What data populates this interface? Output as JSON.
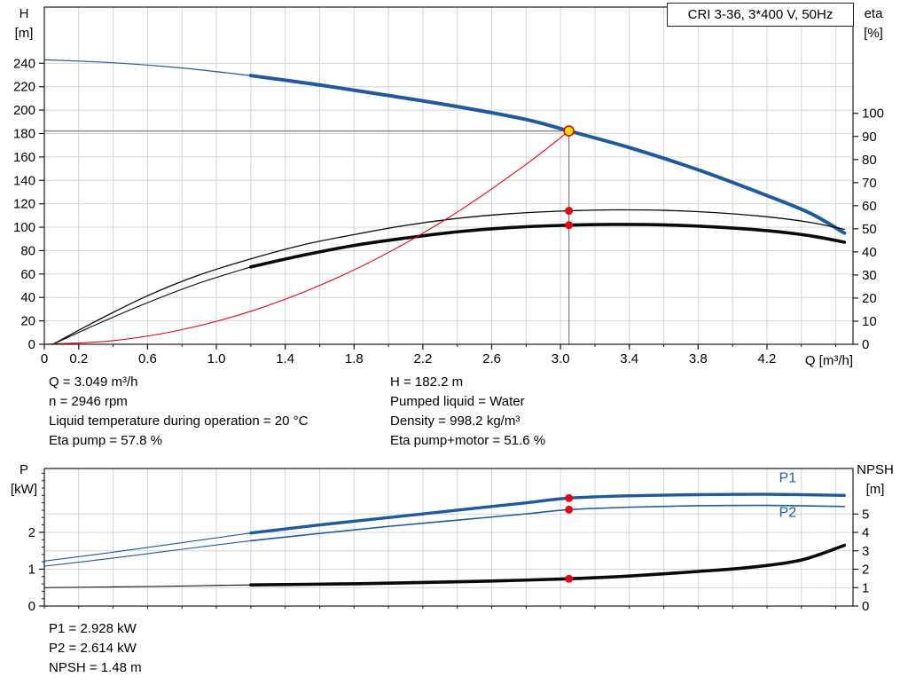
{
  "title_box": "CRI 3-36, 3*400 V, 50Hz",
  "colors": {
    "curve_blue": "#1d5a9e",
    "curve_black": "#0a0a0a",
    "curve_red": "#e30613",
    "marker_red": "#e30613",
    "marker_yellow": "#ffe000",
    "grid": "#d4d4d4",
    "frame": "#1a1a1a",
    "crosshair": "#7a7a7a"
  },
  "operating_point": {
    "left": [
      "Q = 3.049 m³/h",
      "n = 2946 rpm",
      "Liquid temperature during operation = 20 °C",
      "Eta pump = 57.8 %"
    ],
    "right": [
      "H = 182.2 m",
      "Pumped liquid = Water",
      "Density = 998.2 kg/m³",
      "Eta pump+motor = 51.6 %"
    ]
  },
  "power_results": [
    "P1 = 2.928 kW",
    "P2 = 2.614 kW",
    "NPSH = 1.48 m"
  ],
  "chart_data": [
    {
      "type": "line",
      "name": "hq-eta-chart",
      "title": "CRI 3-36, 3*400 V, 50Hz",
      "x": {
        "title": "Q [m³/h]",
        "min": 0,
        "max": 4.7,
        "grid_step": 0.2,
        "minor_step": 0.2,
        "ticks": [
          {
            "v": 0,
            "l": "0"
          },
          {
            "v": 0.2,
            "l": "0.2"
          },
          {
            "v": 0.6,
            "l": "0.6"
          },
          {
            "v": 1.0,
            "l": "1.0"
          },
          {
            "v": 1.4,
            "l": "1.4"
          },
          {
            "v": 1.8,
            "l": "1.8"
          },
          {
            "v": 2.2,
            "l": "2.2"
          },
          {
            "v": 2.6,
            "l": "2.6"
          },
          {
            "v": 3.0,
            "l": "3.0"
          },
          {
            "v": 3.4,
            "l": "3.4"
          },
          {
            "v": 3.8,
            "l": "3.8"
          },
          {
            "v": 4.2,
            "l": "4.2"
          }
        ]
      },
      "y_left": {
        "title": "H",
        "unit": "[m]",
        "min": 0,
        "max": 288,
        "ticks": [
          {
            "v": 0,
            "l": "0"
          },
          {
            "v": 20,
            "l": "20"
          },
          {
            "v": 40,
            "l": "40"
          },
          {
            "v": 60,
            "l": "60"
          },
          {
            "v": 80,
            "l": "80"
          },
          {
            "v": 100,
            "l": "100"
          },
          {
            "v": 120,
            "l": "120"
          },
          {
            "v": 140,
            "l": "140"
          },
          {
            "v": 160,
            "l": "160"
          },
          {
            "v": 180,
            "l": "180"
          },
          {
            "v": 200,
            "l": "200"
          },
          {
            "v": 220,
            "l": "220"
          },
          {
            "v": 240,
            "l": "240"
          }
        ]
      },
      "y_right": {
        "title": "eta",
        "unit": "[%]",
        "min": 0,
        "max": 146,
        "ticks": [
          {
            "v": 0,
            "l": "0"
          },
          {
            "v": 10,
            "l": "10"
          },
          {
            "v": 20,
            "l": "20"
          },
          {
            "v": 30,
            "l": "30"
          },
          {
            "v": 40,
            "l": "40"
          },
          {
            "v": 50,
            "l": "50"
          },
          {
            "v": 60,
            "l": "60"
          },
          {
            "v": 70,
            "l": "70"
          },
          {
            "v": 80,
            "l": "80"
          },
          {
            "v": 90,
            "l": "90"
          },
          {
            "v": 100,
            "l": "100"
          }
        ]
      },
      "h_grid": {
        "axis": "left",
        "values": [
          20,
          40,
          60,
          80,
          100,
          120,
          140,
          160,
          180,
          200,
          220,
          240
        ]
      },
      "crosshair": {
        "q": 3.049,
        "v": 182.2,
        "axis": "left"
      },
      "series": [
        {
          "name": "head-curve-lead-in",
          "axis": "left",
          "color": "#1d5a9e",
          "width": 1.2,
          "points": [
            [
              0,
              243
            ],
            [
              0.4,
              240.5
            ],
            [
              0.8,
              236
            ],
            [
              1.2,
              229.5
            ]
          ]
        },
        {
          "name": "head-curve",
          "axis": "left",
          "color": "#1d5a9e",
          "width": 4,
          "points": [
            [
              1.2,
              229.5
            ],
            [
              1.6,
              221.5
            ],
            [
              2.0,
              212.5
            ],
            [
              2.4,
              203
            ],
            [
              2.8,
              192
            ],
            [
              3.049,
              182.2
            ],
            [
              3.4,
              168
            ],
            [
              3.8,
              149
            ],
            [
              4.2,
              127
            ],
            [
              4.45,
              112
            ],
            [
              4.65,
              95
            ]
          ]
        },
        {
          "name": "eta-pump-curve",
          "axis": "right",
          "color": "#0a0a0a",
          "width": 1.3,
          "points": [
            [
              0.05,
              0
            ],
            [
              0.3,
              10
            ],
            [
              0.6,
              21
            ],
            [
              0.9,
              30
            ],
            [
              1.2,
              37
            ],
            [
              1.5,
              43
            ],
            [
              1.8,
              47.5
            ],
            [
              2.1,
              51.5
            ],
            [
              2.4,
              54.5
            ],
            [
              2.7,
              56.5
            ],
            [
              3.049,
              57.8
            ],
            [
              3.3,
              58.2
            ],
            [
              3.6,
              58
            ],
            [
              3.9,
              57
            ],
            [
              4.2,
              55.2
            ],
            [
              4.45,
              52.8
            ],
            [
              4.65,
              49.8
            ]
          ]
        },
        {
          "name": "eta-pump-motor-lead-in",
          "axis": "right",
          "color": "#0a0a0a",
          "width": 1.1,
          "points": [
            [
              0.05,
              0
            ],
            [
              0.3,
              8.5
            ],
            [
              0.6,
              18
            ],
            [
              0.9,
              26.5
            ],
            [
              1.2,
              33.5
            ]
          ]
        },
        {
          "name": "eta-pump-motor-curve",
          "axis": "right",
          "color": "#0a0a0a",
          "width": 3.6,
          "points": [
            [
              1.2,
              33.5
            ],
            [
              1.5,
              38.5
            ],
            [
              1.8,
              42.8
            ],
            [
              2.1,
              46
            ],
            [
              2.4,
              48.7
            ],
            [
              2.7,
              50.5
            ],
            [
              3.049,
              51.6
            ],
            [
              3.3,
              51.9
            ],
            [
              3.6,
              51.7
            ],
            [
              3.9,
              50.8
            ],
            [
              4.2,
              49.2
            ],
            [
              4.45,
              47
            ],
            [
              4.65,
              44.2
            ]
          ]
        },
        {
          "name": "system-curve",
          "axis": "left",
          "color": "#e30613",
          "width": 1.1,
          "points": [
            [
              0,
              0
            ],
            [
              0.4,
              3.1
            ],
            [
              0.8,
              12.5
            ],
            [
              1.2,
              28.2
            ],
            [
              1.6,
              50.2
            ],
            [
              2.0,
              78.4
            ],
            [
              2.4,
              112.9
            ],
            [
              2.8,
              153.7
            ],
            [
              3.049,
              182.2
            ]
          ]
        }
      ],
      "markers": [
        {
          "name": "duty-point-marker",
          "q": 3.049,
          "v": 182.2,
          "axis": "left",
          "r": 5.5,
          "fill": "#ffe000",
          "stroke": "#e30613"
        },
        {
          "name": "eta-pump-duty-dot",
          "q": 3.049,
          "v": 57.8,
          "axis": "right",
          "r": 4.5,
          "fill": "#e30613"
        },
        {
          "name": "eta-pump-motor-duty-dot",
          "q": 3.049,
          "v": 51.6,
          "axis": "right",
          "r": 4.5,
          "fill": "#e30613"
        }
      ]
    },
    {
      "type": "line",
      "name": "power-npsh-chart",
      "title": "",
      "x": {
        "title": "",
        "min": 0,
        "max": 4.7,
        "grid_step": 0.2,
        "minor_step": 0.2,
        "ticks": []
      },
      "y_left": {
        "title": "P",
        "unit": "[kW]",
        "min": 0,
        "max": 3.73,
        "minor_step": 0.2,
        "ticks": [
          {
            "v": 0,
            "l": "0"
          },
          {
            "v": 1,
            "l": "1"
          },
          {
            "v": 2,
            "l": "2"
          }
        ]
      },
      "y_right": {
        "title": "NPSH",
        "unit": "[m]",
        "min": 0,
        "max": 7.47,
        "ticks": [
          {
            "v": 0,
            "l": "0"
          },
          {
            "v": 1,
            "l": "1"
          },
          {
            "v": 2,
            "l": "2"
          },
          {
            "v": 3,
            "l": "3"
          },
          {
            "v": 4,
            "l": "4"
          },
          {
            "v": 5,
            "l": "5"
          }
        ]
      },
      "h_grid": {
        "axis": "right",
        "values": [
          1,
          2,
          3,
          4,
          5
        ]
      },
      "series": [
        {
          "name": "p1-curve-lead-in",
          "axis": "left",
          "color": "#1d5a9e",
          "width": 1.1,
          "points": [
            [
              0,
              1.22
            ],
            [
              0.4,
              1.46
            ],
            [
              0.8,
              1.72
            ],
            [
              1.2,
              1.98
            ]
          ]
        },
        {
          "name": "p1-curve",
          "axis": "left",
          "color": "#1d5a9e",
          "width": 3.4,
          "points": [
            [
              1.2,
              1.98
            ],
            [
              1.6,
              2.2
            ],
            [
              2.0,
              2.4
            ],
            [
              2.4,
              2.6
            ],
            [
              2.8,
              2.8
            ],
            [
              3.049,
              2.928
            ],
            [
              3.4,
              2.99
            ],
            [
              3.8,
              3.02
            ],
            [
              4.2,
              3.03
            ],
            [
              4.65,
              3.0
            ]
          ]
        },
        {
          "name": "p2-curve-lead-in",
          "axis": "left",
          "color": "#1d5a9e",
          "width": 1.1,
          "points": [
            [
              0,
              1.08
            ],
            [
              0.4,
              1.3
            ],
            [
              0.8,
              1.54
            ],
            [
              1.2,
              1.77
            ]
          ]
        },
        {
          "name": "p2-curve",
          "axis": "left",
          "color": "#1d5a9e",
          "width": 1.6,
          "points": [
            [
              1.2,
              1.77
            ],
            [
              1.6,
              1.97
            ],
            [
              2.0,
              2.16
            ],
            [
              2.4,
              2.33
            ],
            [
              2.8,
              2.5
            ],
            [
              3.049,
              2.614
            ],
            [
              3.4,
              2.68
            ],
            [
              3.8,
              2.72
            ],
            [
              4.2,
              2.73
            ],
            [
              4.65,
              2.7
            ]
          ]
        },
        {
          "name": "npsh-curve-lead-in",
          "axis": "right",
          "color": "#0a0a0a",
          "width": 1.1,
          "points": [
            [
              0,
              1.0
            ],
            [
              0.6,
              1.06
            ],
            [
              1.2,
              1.15
            ]
          ]
        },
        {
          "name": "npsh-curve",
          "axis": "right",
          "color": "#0a0a0a",
          "width": 3.6,
          "points": [
            [
              1.2,
              1.15
            ],
            [
              1.8,
              1.21
            ],
            [
              2.2,
              1.28
            ],
            [
              2.6,
              1.36
            ],
            [
              3.049,
              1.48
            ],
            [
              3.4,
              1.63
            ],
            [
              3.8,
              1.88
            ],
            [
              4.1,
              2.1
            ],
            [
              4.4,
              2.5
            ],
            [
              4.65,
              3.3
            ]
          ]
        }
      ],
      "markers": [
        {
          "name": "p1-duty-dot",
          "q": 3.049,
          "v": 2.928,
          "axis": "left",
          "r": 4.5,
          "fill": "#e30613"
        },
        {
          "name": "p2-duty-dot",
          "q": 3.049,
          "v": 2.614,
          "axis": "left",
          "r": 4.5,
          "fill": "#e30613"
        },
        {
          "name": "npsh-duty-dot",
          "q": 3.049,
          "v": 1.48,
          "axis": "right",
          "r": 4.5,
          "fill": "#e30613"
        }
      ],
      "curve_labels": [
        {
          "text": "P1",
          "q": 4.27,
          "v": 3.36,
          "axis": "left"
        },
        {
          "text": "P2",
          "q": 4.27,
          "v": 2.42,
          "axis": "left"
        }
      ]
    }
  ]
}
